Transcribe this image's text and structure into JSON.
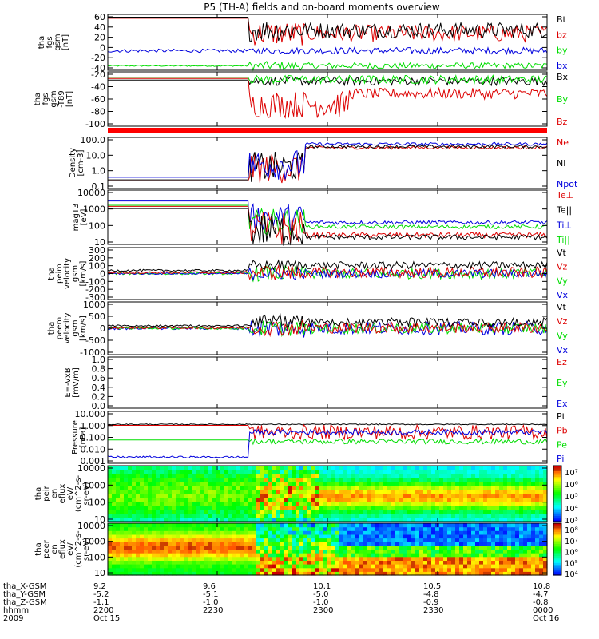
{
  "title": "P5 (TH-A) fields and on-board moments overview",
  "colors": {
    "black": "#000000",
    "red": "#dd0000",
    "green": "#00dd00",
    "blue": "#0000dd",
    "redbar": "#ff0000"
  },
  "time_axis": {
    "ticks": [
      "2200",
      "2230",
      "2300",
      "2330",
      "0000"
    ],
    "row_labels": [
      "tha_X-GSM",
      "tha_Y-GSM",
      "tha_Z-GSM",
      "hhmm",
      "2009"
    ],
    "x_gsm": [
      "9.2",
      "9.6",
      "10.1",
      "10.5",
      "10.8"
    ],
    "y_gsm": [
      "-5.2",
      "-5.1",
      "-5.0",
      "-4.8",
      "-4.7"
    ],
    "z_gsm": [
      "-1.1",
      "-1.0",
      "-1.0",
      "-0.9",
      "-0.8"
    ],
    "date_start": "Oct 15",
    "date_end": "Oct 16"
  },
  "chart_data": [
    {
      "id": "fgs_gsm",
      "type": "line",
      "ylabel": [
        "tha",
        "fgs",
        "gsm",
        "[nT]"
      ],
      "ylim": [
        -40,
        60
      ],
      "yticks": [
        "60",
        "40",
        "20",
        "0",
        "-20",
        "-40"
      ],
      "legend": [
        {
          "name": "Bt",
          "color": "black"
        },
        {
          "name": "bz",
          "color": "red"
        },
        {
          "name": "by",
          "color": "green"
        },
        {
          "name": "bx",
          "color": "blue"
        }
      ]
    },
    {
      "id": "fgs_gsm_tsy",
      "type": "line",
      "ylabel": [
        "tha",
        "fgs",
        "gsm",
        "-T89",
        "[nT]"
      ],
      "ylim": [
        -100,
        0
      ],
      "yticks": [
        "-20",
        "-40",
        "-60",
        "-80",
        "-100"
      ],
      "legend": [
        {
          "name": "Bx",
          "color": "black"
        },
        {
          "name": "By",
          "color": "green"
        },
        {
          "name": "Bz",
          "color": "red"
        }
      ]
    },
    {
      "id": "density",
      "type": "line",
      "ylabel": [
        "Density",
        "[cm-3]"
      ],
      "scale": "log",
      "yticks": [
        "100.0",
        "10.0",
        "1.0",
        "0.1"
      ],
      "legend": [
        {
          "name": "Ne",
          "color": "red"
        },
        {
          "name": "Ni",
          "color": "black"
        },
        {
          "name": "Npot",
          "color": "blue"
        }
      ]
    },
    {
      "id": "temperature",
      "type": "line",
      "ylabel": [
        "magT3",
        "[eV]"
      ],
      "scale": "log",
      "yticks": [
        "10000",
        "1000",
        "100",
        "10"
      ],
      "legend": [
        {
          "name": "Te⊥",
          "color": "red"
        },
        {
          "name": "Te||",
          "color": "black"
        },
        {
          "name": "Ti⊥",
          "color": "blue"
        },
        {
          "name": "Ti||",
          "color": "green"
        }
      ]
    },
    {
      "id": "peim_velocity",
      "type": "line",
      "ylabel": [
        "tha",
        "peim",
        "velocity",
        "gsm",
        "[km/s]"
      ],
      "ylim": [
        -300,
        300
      ],
      "yticks": [
        "300",
        "200",
        "100",
        "0",
        "-100",
        "-200",
        "-300"
      ],
      "legend": [
        {
          "name": "Vt",
          "color": "black"
        },
        {
          "name": "Vz",
          "color": "red"
        },
        {
          "name": "Vy",
          "color": "green"
        },
        {
          "name": "Vx",
          "color": "blue"
        }
      ]
    },
    {
      "id": "peem_velocity",
      "type": "line",
      "ylabel": [
        "tha",
        "peem",
        "velocity",
        "gsm",
        "[km/s]"
      ],
      "ylim": [
        -1000,
        1000
      ],
      "yticks": [
        "1000",
        "500",
        "0",
        "-500",
        "-1000"
      ],
      "legend": [
        {
          "name": "Vt",
          "color": "black"
        },
        {
          "name": "Vz",
          "color": "red"
        },
        {
          "name": "Vy",
          "color": "green"
        },
        {
          "name": "Vx",
          "color": "blue"
        }
      ]
    },
    {
      "id": "e_field",
      "type": "line",
      "ylabel": [
        "E=-VxB",
        "[mV/m]"
      ],
      "ylim": [
        0,
        1
      ],
      "yticks": [
        "1.0",
        "0.8",
        "0.6",
        "0.4",
        "0.2",
        "0.0"
      ],
      "legend": [
        {
          "name": "Ez",
          "color": "red"
        },
        {
          "name": "Ey",
          "color": "green"
        },
        {
          "name": "Ex",
          "color": "blue"
        }
      ]
    },
    {
      "id": "pressure",
      "type": "line",
      "ylabel": [
        "Pressure",
        "[nPa]"
      ],
      "scale": "log",
      "yticks": [
        "10.000",
        "1.000",
        "0.100",
        "0.010",
        "0.001"
      ],
      "legend": [
        {
          "name": "Pt",
          "color": "black"
        },
        {
          "name": "Pb",
          "color": "red"
        },
        {
          "name": "Pe",
          "color": "green"
        },
        {
          "name": "Pi",
          "color": "blue"
        }
      ]
    },
    {
      "id": "peir_en_eflux",
      "type": "heatmap",
      "ylabel": [
        "tha",
        "peir",
        "en",
        "eflux",
        "eV/",
        "(cm^2-s-",
        "sr-eV)"
      ],
      "scale": "log",
      "yticks": [
        "10000",
        "1000",
        "100",
        "10"
      ],
      "colorbar": [
        "10⁷",
        "10⁶",
        "10⁵",
        "10⁴",
        "10³"
      ]
    },
    {
      "id": "peer_en_eflux",
      "type": "heatmap",
      "ylabel": [
        "tha",
        "peer",
        "en",
        "eflux",
        "eV/",
        "(cm^2-s-",
        "sr-eV)"
      ],
      "scale": "log",
      "yticks": [
        "10000",
        "1000",
        "100",
        "10"
      ],
      "colorbar": [
        "10⁸",
        "10⁷",
        "10⁶",
        "10⁵",
        "10⁴"
      ]
    }
  ]
}
